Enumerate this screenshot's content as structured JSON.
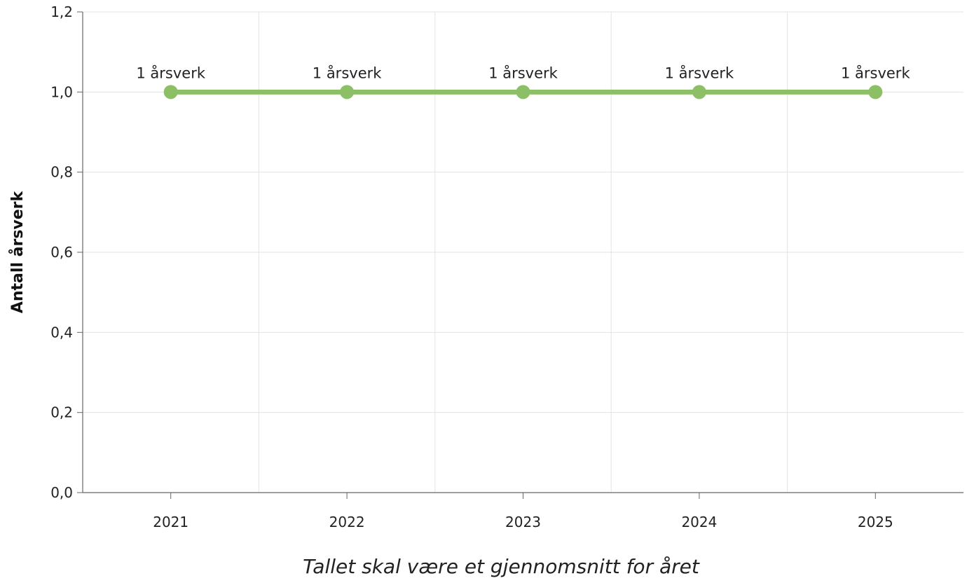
{
  "chart_data": {
    "type": "line",
    "categories": [
      "2021",
      "2022",
      "2023",
      "2024",
      "2025"
    ],
    "series": [
      {
        "values": [
          1,
          1,
          1,
          1,
          1
        ],
        "data_labels": [
          "1 årsverk",
          "1 årsverk",
          "1 årsverk",
          "1 årsverk",
          "1 årsverk"
        ],
        "color": "#8dbf67"
      }
    ],
    "xlabel": "Tallet skal være et gjennomsnitt for året",
    "ylabel": "Antall årsverk",
    "ylim": [
      0,
      1.2
    ],
    "yticks": [
      "0,0",
      "0,2",
      "0,4",
      "0,6",
      "0,8",
      "1,0",
      "1,2"
    ],
    "grid": true,
    "legend": "none",
    "colors": {
      "grid": "#e3e3e3",
      "axis": "#666666"
    }
  }
}
